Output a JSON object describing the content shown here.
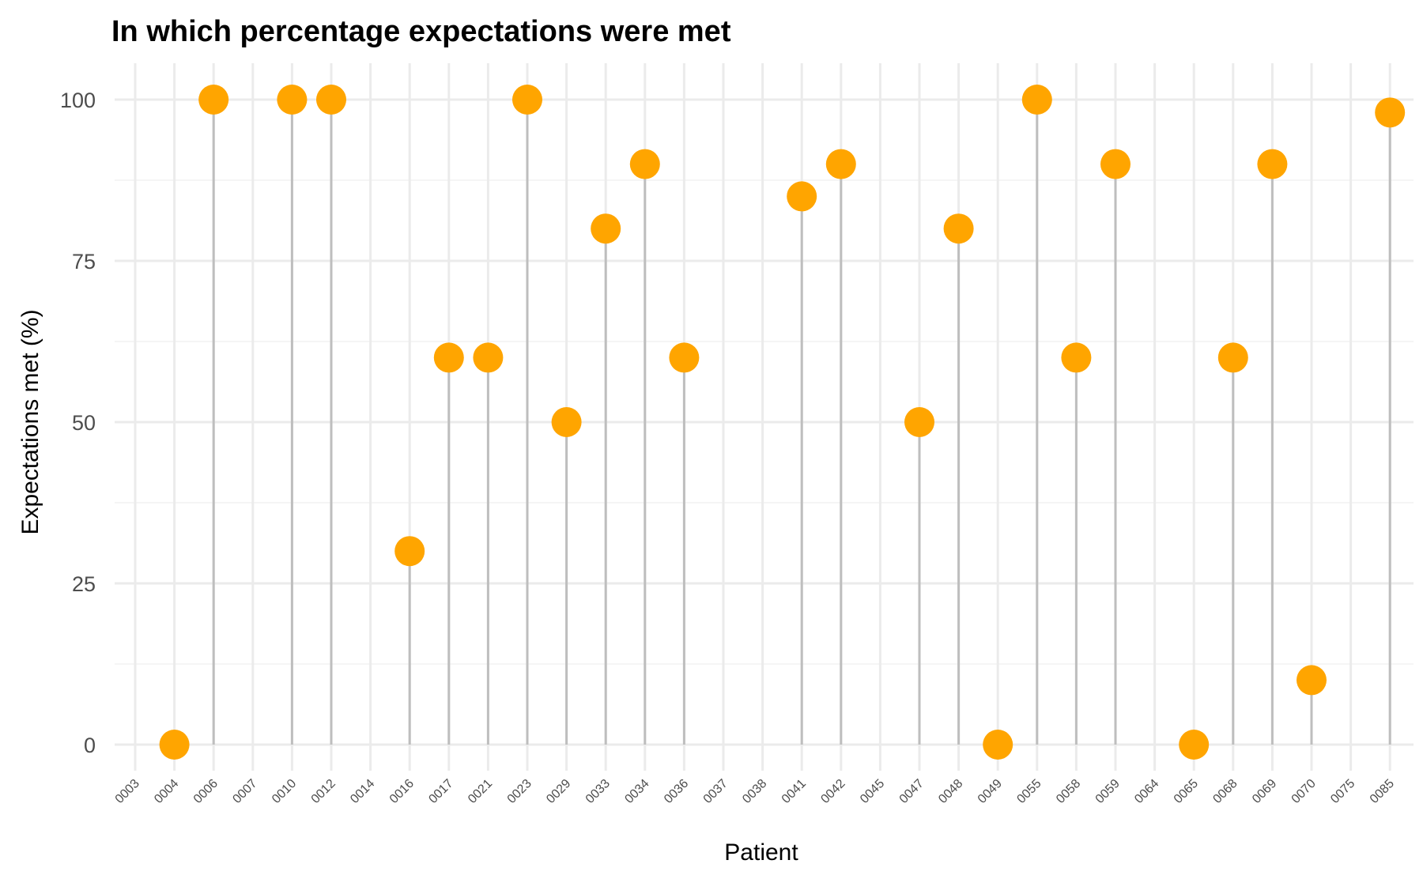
{
  "chart_data": {
    "type": "lollipop",
    "title": "In which percentage expectations were met",
    "xlabel": "Patient",
    "ylabel": "Expectations met (%)",
    "ylim": [
      -5,
      105
    ],
    "yticks": [
      0,
      25,
      50,
      75,
      100
    ],
    "grid": true,
    "legend": "none",
    "point_color": "#FFA500",
    "stem_color": "#BEBEBE",
    "categories": [
      "0003",
      "0004",
      "0006",
      "0007",
      "0010",
      "0012",
      "0014",
      "0016",
      "0017",
      "0021",
      "0023",
      "0029",
      "0033",
      "0034",
      "0036",
      "0037",
      "0038",
      "0041",
      "0042",
      "0045",
      "0047",
      "0048",
      "0049",
      "0055",
      "0058",
      "0059",
      "0064",
      "0065",
      "0068",
      "0069",
      "0070",
      "0075",
      "0085"
    ],
    "values": [
      null,
      0,
      100,
      null,
      100,
      100,
      null,
      30,
      60,
      60,
      100,
      50,
      80,
      90,
      60,
      null,
      null,
      85,
      90,
      null,
      50,
      80,
      0,
      100,
      60,
      90,
      null,
      0,
      60,
      90,
      10,
      null,
      98
    ]
  }
}
